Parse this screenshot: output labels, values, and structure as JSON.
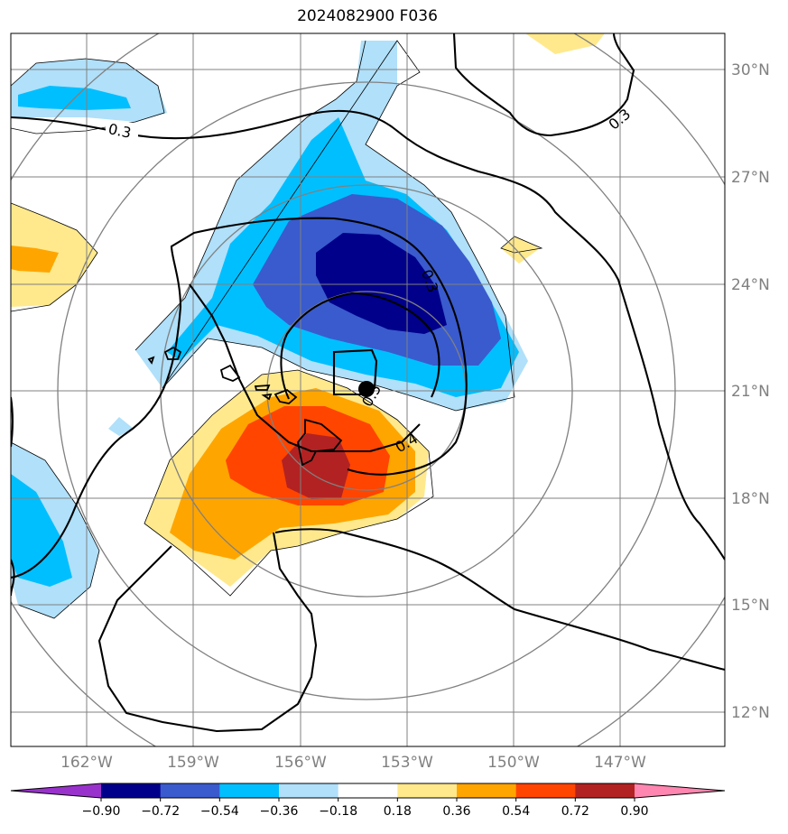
{
  "title": "2024082900 F036",
  "axes": {
    "lat_labels": [
      "30°N",
      "27°N",
      "24°N",
      "21°N",
      "18°N",
      "15°N",
      "12°N"
    ],
    "lon_labels": [
      "162°W",
      "159°W",
      "156°W",
      "153°W",
      "150°W",
      "147°W"
    ]
  },
  "contour_labels": [
    "0.3",
    "0.3",
    "0.3",
    "0.4",
    "0.5"
  ],
  "colorbar": {
    "ticks": [
      "−0.90",
      "−0.72",
      "−0.54",
      "−0.36",
      "−0.18",
      "0.18",
      "0.36",
      "0.54",
      "0.72",
      "0.90"
    ],
    "colors": [
      "#9932cc",
      "#00008b",
      "#3a5bcd",
      "#00bfff",
      "#b0e0fa",
      "#ffffff",
      "#ffe98c",
      "#ffa500",
      "#ff4500",
      "#b22222",
      "#ff86b0"
    ]
  },
  "colors": {
    "gridline": "#808080",
    "contour": "#000000",
    "storm_center": "#000000"
  }
}
